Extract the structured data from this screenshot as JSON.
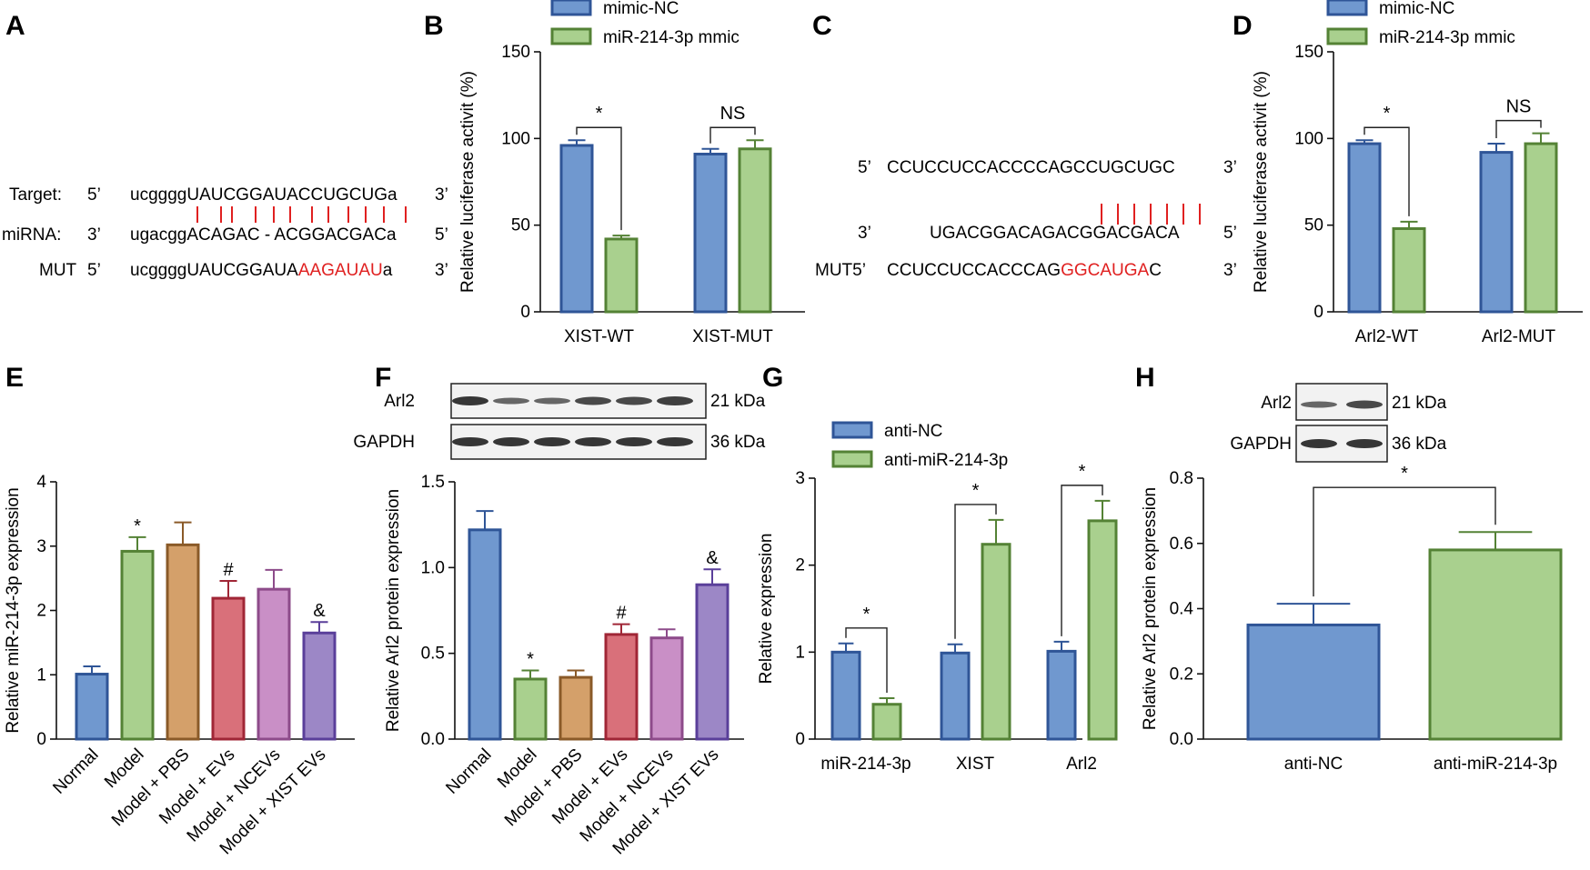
{
  "colors": {
    "blue_fill": "#7098cf",
    "blue_stroke": "#2f5597",
    "green_fill": "#a9d08e",
    "green_stroke": "#548235",
    "tan_fill": "#d4a06a",
    "tan_stroke": "#8a5a28",
    "red_fill": "#d9707a",
    "red_stroke": "#a02636",
    "pink_fill": "#c98fc6",
    "pink_stroke": "#8d4b8a",
    "purple_fill": "#9c87c6",
    "purple_stroke": "#5a3f9a",
    "mismatch_red": "#e02020"
  },
  "panelA": {
    "letter": "A",
    "rows": [
      {
        "label": "Target:",
        "dir5": "5’",
        "lower": "ucgggg",
        "upper": "UAUCGGAUACCUGCUG",
        "tail": "a",
        "dir3": "3’",
        "red": ""
      },
      {
        "label": "miRNA:",
        "dir5": "3’",
        "lower": "ugacgg",
        "upper": "ACAGAC - ACGGACGAC",
        "tail": "a",
        "dir3": "5’",
        "red": ""
      },
      {
        "label": "MUT",
        "dir5": "5’",
        "lower": "ucgggg",
        "upper": "UAUCGGAUA",
        "tail": "a",
        "dir3": "3’",
        "red": "AAGAUAU"
      }
    ]
  },
  "panelC": {
    "letter": "C",
    "rows": [
      {
        "label": "",
        "dir5": "5’",
        "seq": "CCUCCUCCACCCCAGCCUGCUGC",
        "red": "",
        "dir3": "3’"
      },
      {
        "label": "",
        "dir5": "3’",
        "seq": "UGACGGACAGACGGACGACA",
        "red": "",
        "dir3": "5’"
      },
      {
        "label": "MUT5’",
        "dir5": "",
        "seq": "CCUCCUCCACCCAG",
        "red": "GGCAUGA",
        "tail": "C",
        "dir3": "3’"
      }
    ]
  },
  "blots": {
    "F": {
      "rows": [
        "Arl2",
        "GAPDH"
      ],
      "sizes": [
        "21 kDa",
        "36 kDa"
      ]
    },
    "H": {
      "rows": [
        "Arl2",
        "GAPDH"
      ],
      "sizes": [
        "21 kDa",
        "36 kDa"
      ]
    }
  },
  "chart_data": [
    {
      "panel": "B",
      "type": "bar",
      "ylabel": "Relative luciferase activit (%)",
      "ylim": [
        0,
        150
      ],
      "yticks": [
        0,
        50,
        100,
        150
      ],
      "categories": [
        "XIST-WT",
        "XIST-MUT"
      ],
      "series": [
        {
          "name": "mimic-NC",
          "values": [
            96,
            91
          ],
          "errors": [
            3,
            3
          ]
        },
        {
          "name": "miR-214-3p mmic",
          "values": [
            42,
            94
          ],
          "errors": [
            2,
            5
          ]
        }
      ],
      "significance": [
        "*",
        "NS"
      ],
      "legend": "top"
    },
    {
      "panel": "D",
      "type": "bar",
      "ylabel": "Relative luciferase activit (%)",
      "ylim": [
        0,
        150
      ],
      "yticks": [
        0,
        50,
        100,
        150
      ],
      "categories": [
        "Arl2-WT",
        "Arl2-MUT"
      ],
      "series": [
        {
          "name": "mimic-NC",
          "values": [
            97,
            92
          ],
          "errors": [
            2,
            5
          ]
        },
        {
          "name": "miR-214-3p mmic",
          "values": [
            48,
            97
          ],
          "errors": [
            4,
            6
          ]
        }
      ],
      "significance": [
        "*",
        "NS"
      ],
      "legend": "top"
    },
    {
      "panel": "E",
      "type": "bar",
      "ylabel": "Relative miR-214-3p expression",
      "ylim": [
        0,
        4
      ],
      "yticks": [
        0,
        1,
        2,
        3,
        4
      ],
      "categories": [
        "Normal",
        "Model",
        "Model + PBS",
        "Model + EVs",
        "Model + NCEVs",
        "Model + XIST EVs"
      ],
      "values": [
        1.01,
        2.92,
        3.02,
        2.19,
        2.33,
        1.65
      ],
      "errors": [
        0.12,
        0.22,
        0.35,
        0.27,
        0.3,
        0.17
      ],
      "marks": [
        "",
        "*",
        "",
        "#",
        "",
        "&"
      ]
    },
    {
      "panel": "F",
      "type": "bar",
      "ylabel": "Relative Arl2 protein expression",
      "ylim": [
        0,
        1.5
      ],
      "yticks": [
        "0.0",
        "0.5",
        "1.0",
        "1.5"
      ],
      "categories": [
        "Normal",
        "Model",
        "Model + PBS",
        "Model + EVs",
        "Model + NCEVs",
        "Model + XIST EVs"
      ],
      "values": [
        1.22,
        0.35,
        0.36,
        0.61,
        0.59,
        0.9
      ],
      "errors": [
        0.11,
        0.05,
        0.04,
        0.06,
        0.05,
        0.09
      ],
      "marks": [
        "",
        "*",
        "",
        "#",
        "",
        "&"
      ]
    },
    {
      "panel": "G",
      "type": "bar",
      "ylabel": "Relative expression",
      "ylim": [
        0,
        3
      ],
      "yticks": [
        0,
        1,
        2,
        3
      ],
      "categories": [
        "miR-214-3p",
        "XIST",
        "Arl2"
      ],
      "series": [
        {
          "name": "anti-NC",
          "values": [
            1.0,
            0.99,
            1.01
          ],
          "errors": [
            0.1,
            0.1,
            0.11
          ]
        },
        {
          "name": "anti-miR-214-3p",
          "values": [
            0.4,
            2.24,
            2.51
          ],
          "errors": [
            0.07,
            0.28,
            0.23
          ]
        }
      ],
      "significance": [
        "*",
        "*",
        "*"
      ],
      "legend": "top-left"
    },
    {
      "panel": "H",
      "type": "bar",
      "ylabel": "Relative Arl2 protein expression",
      "ylim": [
        0,
        0.8
      ],
      "yticks": [
        "0.0",
        "0.2",
        "0.4",
        "0.6",
        "0.8"
      ],
      "categories": [
        "anti-NC",
        "anti-miR-214-3p"
      ],
      "values": [
        0.35,
        0.58
      ],
      "errors": [
        0.065,
        0.055
      ],
      "significance": [
        "*"
      ]
    }
  ]
}
